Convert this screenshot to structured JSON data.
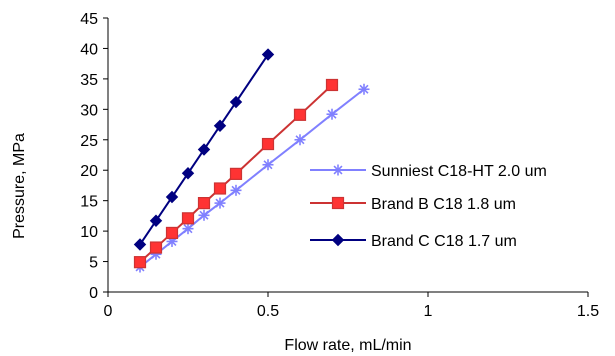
{
  "chart_data": {
    "type": "line",
    "title": "",
    "xlabel": "Flow rate, mL/min",
    "ylabel": "Pressure, MPa",
    "xlim": [
      0,
      1.5
    ],
    "ylim": [
      0,
      45
    ],
    "xticks": [
      0,
      0.5,
      1,
      1.5
    ],
    "xtick_labels": [
      "0",
      "0.5",
      "1",
      "1.5"
    ],
    "yticks": [
      0,
      5,
      10,
      15,
      20,
      25,
      30,
      35,
      40,
      45
    ],
    "ytick_labels": [
      "0",
      "5",
      "10",
      "15",
      "20",
      "25",
      "30",
      "35",
      "40",
      "45"
    ],
    "grid": false,
    "legend": "right",
    "series": [
      {
        "name": "Sunniest C18-HT 2.0 um",
        "color": "#8080ff",
        "marker": "asterisk",
        "x": [
          0.1,
          0.15,
          0.2,
          0.25,
          0.3,
          0.35,
          0.4,
          0.5,
          0.6,
          0.7,
          0.8
        ],
        "y": [
          4.1,
          6.2,
          8.3,
          10.4,
          12.6,
          14.6,
          16.7,
          20.9,
          25.0,
          29.2,
          33.3
        ]
      },
      {
        "name": "Brand B C18 1.8 um",
        "color": "#cc3333",
        "marker_fill": "#ff3333",
        "marker": "square",
        "x": [
          0.1,
          0.15,
          0.2,
          0.25,
          0.3,
          0.35,
          0.4,
          0.5,
          0.6,
          0.7
        ],
        "y": [
          4.9,
          7.3,
          9.7,
          12.1,
          14.6,
          17.0,
          19.4,
          24.3,
          29.1,
          34.0
        ]
      },
      {
        "name": "Brand C C18 1.7 um",
        "color": "#000080",
        "marker": "diamond",
        "x": [
          0.1,
          0.15,
          0.2,
          0.25,
          0.3,
          0.35,
          0.4,
          0.5
        ],
        "y": [
          7.8,
          11.7,
          15.6,
          19.5,
          23.4,
          27.3,
          31.2,
          39.0
        ]
      }
    ]
  }
}
